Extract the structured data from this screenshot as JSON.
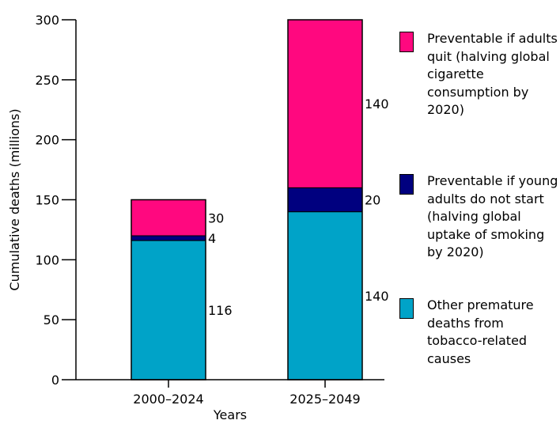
{
  "chart_data": {
    "type": "bar",
    "stacked": true,
    "categories": [
      "2000–2024",
      "2025–2049"
    ],
    "xlabel": "Years",
    "ylabel": "Cumulative deaths (millions)",
    "ylim": [
      0,
      300
    ],
    "yticks": [
      0,
      50,
      100,
      150,
      200,
      250,
      300
    ],
    "grid": false,
    "legend_position": "right",
    "series": [
      {
        "name": "Other premature deaths from tobacco-related causes",
        "values": [
          116,
          140
        ],
        "color": "#00a3c8"
      },
      {
        "name": "Preventable if young adults do not start (halving global uptake of smoking by 2020)",
        "values": [
          4,
          20
        ],
        "color": "#00007f"
      },
      {
        "name": "Preventable if adults quit (halving global cigarette consumption by 2020)",
        "values": [
          30,
          140
        ],
        "color": "#ff087f"
      }
    ],
    "data_labels": [
      [
        "116",
        "4",
        "30"
      ],
      [
        "140",
        "20",
        "140"
      ]
    ]
  },
  "legend": [
    {
      "label": "Preventable if adults quit (halving global cigarette consumption by 2020)",
      "color": "#ff087f"
    },
    {
      "label": "Preventable if young adults do not start (halving global uptake of smoking by 2020)",
      "color": "#00007f"
    },
    {
      "label": "Other premature deaths from tobacco-related causes",
      "color": "#00a3c8"
    }
  ]
}
